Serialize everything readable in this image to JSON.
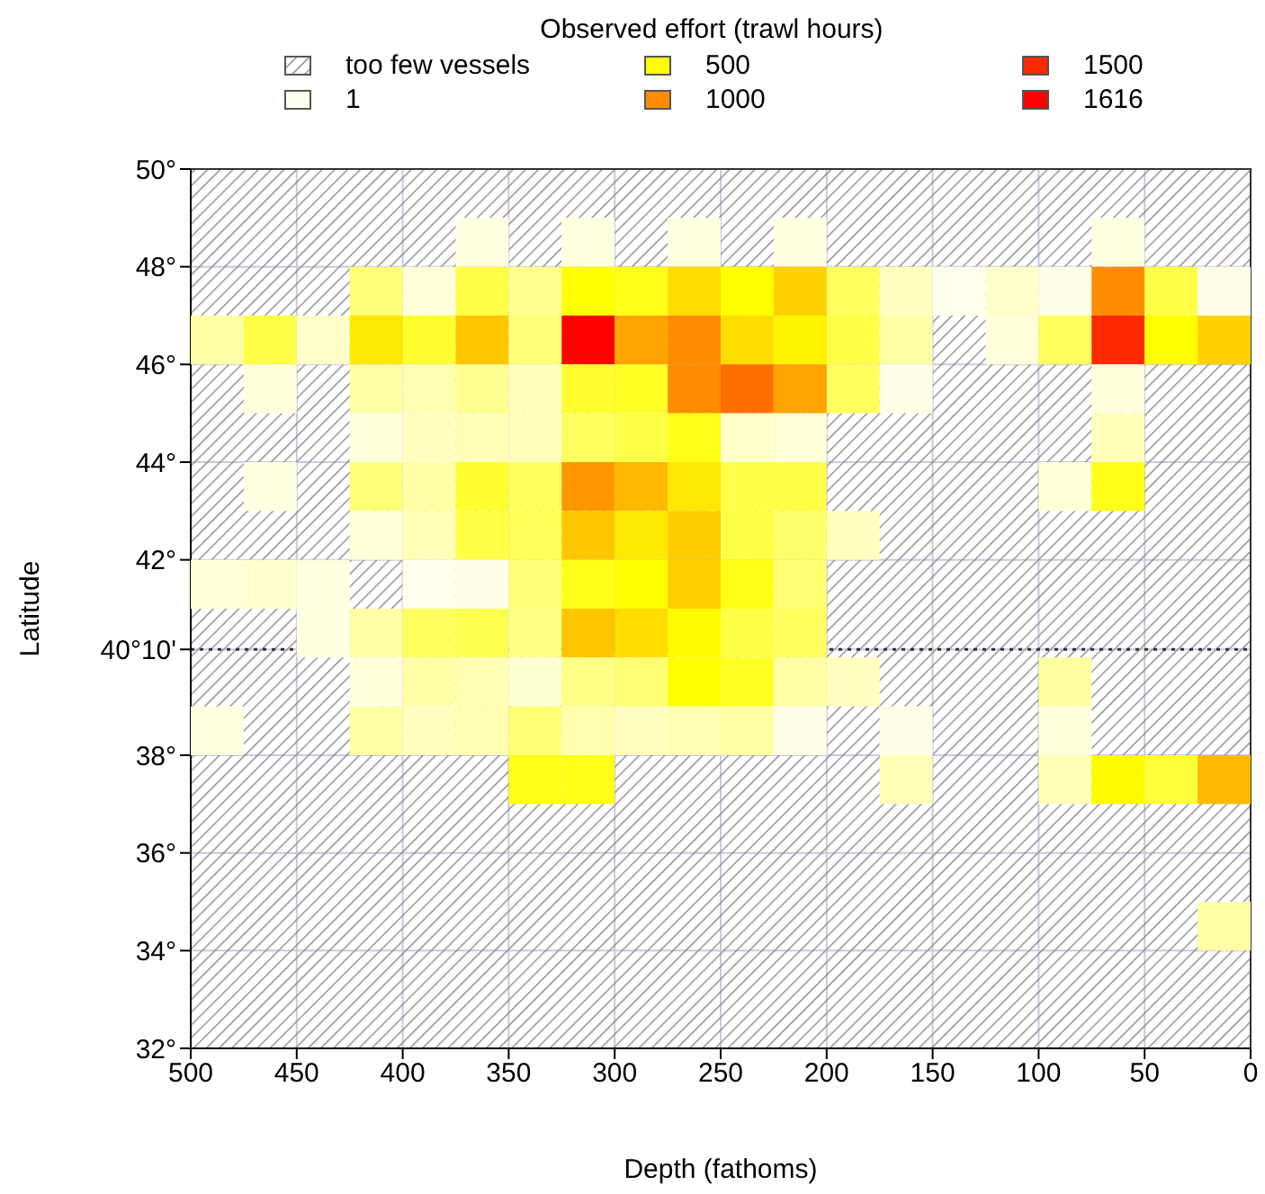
{
  "chart_data": {
    "type": "scatter",
    "marker": "square",
    "legend": "top",
    "legend_title": "Observed effort (trawl hours)",
    "xlabel": "Depth (fathoms)",
    "ylabel": "Latitude",
    "annotations": [
      "too few vessels"
    ],
    "xlim": [
      500,
      0
    ],
    "xticks": [
      500,
      450,
      400,
      350,
      300,
      250,
      200,
      150,
      100,
      50,
      0
    ],
    "ylim": [
      32,
      50
    ],
    "yticks": [
      {
        "value": 50,
        "label": "50°"
      },
      {
        "value": 48,
        "label": "48°"
      },
      {
        "value": 46,
        "label": "46°"
      },
      {
        "value": 44,
        "label": "44°"
      },
      {
        "value": 42,
        "label": "42°"
      },
      {
        "value": 40.1667,
        "label": "40°10'"
      },
      {
        "value": 38,
        "label": "38°"
      },
      {
        "value": 36,
        "label": "36°"
      },
      {
        "value": 34,
        "label": "34°"
      },
      {
        "value": 32,
        "label": "32°"
      }
    ],
    "ref_lines": [
      {
        "axis": "y",
        "value": 40.1667,
        "color": "#333333",
        "line_style": "dotted"
      }
    ],
    "grid": true,
    "series": [
      {
        "x": [
          362.5,
          312.5,
          262.5,
          212.5,
          62.5,
          412.5,
          387.5,
          362.5,
          337.5,
          312.5,
          287.5,
          262.5,
          237.5,
          212.5,
          187.5,
          162.5,
          137.5,
          112.5,
          87.5,
          62.5,
          37.5,
          12.5,
          487.5,
          462.5,
          437.5,
          412.5,
          387.5,
          362.5,
          337.5,
          312.5,
          287.5,
          262.5,
          237.5,
          212.5,
          187.5,
          162.5,
          112.5,
          87.5,
          62.5,
          37.5,
          12.5,
          462.5,
          412.5,
          387.5,
          362.5,
          337.5,
          312.5,
          287.5,
          262.5,
          237.5,
          212.5,
          187.5,
          162.5,
          62.5,
          412.5,
          387.5,
          362.5,
          337.5,
          312.5,
          287.5,
          262.5,
          237.5,
          212.5,
          62.5,
          462.5,
          412.5,
          387.5,
          362.5,
          337.5,
          312.5,
          287.5,
          262.5,
          237.5,
          212.5,
          87.5,
          62.5,
          412.5,
          387.5,
          362.5,
          337.5,
          312.5,
          287.5,
          262.5,
          237.5,
          212.5,
          187.5,
          487.5,
          462.5,
          437.5,
          387.5,
          362.5,
          337.5,
          312.5,
          287.5,
          262.5,
          237.5,
          212.5,
          437.5,
          412.5,
          387.5,
          362.5,
          337.5,
          312.5,
          287.5,
          262.5,
          237.5,
          212.5,
          412.5,
          387.5,
          362.5,
          337.5,
          312.5,
          287.5,
          262.5,
          237.5,
          212.5,
          187.5,
          87.5,
          487.5,
          412.5,
          387.5,
          362.5,
          337.5,
          312.5,
          287.5,
          262.5,
          237.5,
          212.5,
          162.5,
          87.5,
          337.5,
          312.5,
          162.5,
          87.5,
          62.5,
          37.5,
          12.5,
          12.5
        ],
        "values": [
          48.5,
          48.5,
          48.5,
          48.5,
          48.5,
          47.5,
          47.5,
          47.5,
          47.5,
          47.5,
          47.5,
          47.5,
          47.5,
          47.5,
          47.5,
          47.5,
          47.5,
          47.5,
          47.5,
          47.5,
          47.5,
          47.5,
          46.5,
          46.5,
          46.5,
          46.5,
          46.5,
          46.5,
          46.5,
          46.5,
          46.5,
          46.5,
          46.5,
          46.5,
          46.5,
          46.5,
          46.5,
          46.5,
          46.5,
          46.5,
          46.5,
          45.5,
          45.5,
          45.5,
          45.5,
          45.5,
          45.5,
          45.5,
          45.5,
          45.5,
          45.5,
          45.5,
          45.5,
          45.5,
          44.5,
          44.5,
          44.5,
          44.5,
          44.5,
          44.5,
          44.5,
          44.5,
          44.5,
          44.5,
          43.5,
          43.5,
          43.5,
          43.5,
          43.5,
          43.5,
          43.5,
          43.5,
          43.5,
          43.5,
          43.5,
          43.5,
          42.5,
          42.5,
          42.5,
          42.5,
          42.5,
          42.5,
          42.5,
          42.5,
          42.5,
          42.5,
          41.5,
          41.5,
          41.5,
          41.5,
          41.5,
          41.5,
          41.5,
          41.5,
          41.5,
          41.5,
          41.5,
          40.5,
          40.5,
          40.5,
          40.5,
          40.5,
          40.5,
          40.5,
          40.5,
          40.5,
          40.5,
          39.5,
          39.5,
          39.5,
          39.5,
          39.5,
          39.5,
          39.5,
          39.5,
          39.5,
          39.5,
          39.5,
          38.5,
          38.5,
          38.5,
          38.5,
          38.5,
          38.5,
          38.5,
          38.5,
          38.5,
          38.5,
          38.5,
          38.5,
          37.5,
          37.5,
          37.5,
          37.5,
          37.5,
          37.5,
          37.5,
          34.5
        ],
        "colors": [
          "#ffffe2",
          "#ffffe2",
          "#ffffe2",
          "#ffffe2",
          "#ffffe2",
          "#ffff78",
          "#ffffd8",
          "#ffff48",
          "#ffff90",
          "#ffff00",
          "#ffff18",
          "#ffdd00",
          "#ffff00",
          "#ffd100",
          "#ffff60",
          "#ffffc0",
          "#ffffec",
          "#ffffca",
          "#ffffe9",
          "#ff8c00",
          "#ffff48",
          "#ffffe9",
          "#ffffa8",
          "#ffff48",
          "#ffffca",
          "#ffe800",
          "#ffff30",
          "#ffc600",
          "#ffff78",
          "#ff0000",
          "#ffa300",
          "#ff8c00",
          "#ffdd00",
          "#fff400",
          "#ffff48",
          "#ffffa8",
          "#ffffdd",
          "#ffff60",
          "#ff2a00",
          "#ffff00",
          "#ffd100",
          "#ffffdd",
          "#ffffa8",
          "#ffffb2",
          "#ffff90",
          "#ffffbc",
          "#ffff30",
          "#ffff26",
          "#ff8c00",
          "#ff6f00",
          "#ffa300",
          "#ffff60",
          "#ffffe7",
          "#ffffdd",
          "#ffffdd",
          "#ffffc0",
          "#ffffb7",
          "#ffffbc",
          "#ffff60",
          "#ffff48",
          "#ffff18",
          "#ffffca",
          "#ffffd8",
          "#ffffb7",
          "#ffffe2",
          "#ffff78",
          "#ffffa8",
          "#ffff30",
          "#ffff60",
          "#ff9800",
          "#ffba00",
          "#ffe800",
          "#ffff48",
          "#ffff48",
          "#ffffd8",
          "#ffff18",
          "#ffffd8",
          "#ffffb7",
          "#ffff48",
          "#ffff57",
          "#ffc600",
          "#ffe800",
          "#ffcc00",
          "#ffff48",
          "#ffff6a",
          "#ffffc0",
          "#ffffd8",
          "#ffffcf",
          "#ffffe2",
          "#ffffec",
          "#ffffe7",
          "#ffff78",
          "#ffff18",
          "#ffff00",
          "#ffd100",
          "#ffff18",
          "#ffff73",
          "#ffffe2",
          "#ffffa8",
          "#ffff60",
          "#ffff52",
          "#ffff87",
          "#ffc600",
          "#ffdd00",
          "#fffa00",
          "#ffff48",
          "#ffff60",
          "#ffffdd",
          "#ffffa8",
          "#ffffb2",
          "#ffffd4",
          "#ffff87",
          "#ffff73",
          "#ffff00",
          "#ffff26",
          "#ffffa4",
          "#ffffc0",
          "#ffff9f",
          "#ffffe2",
          "#ffffa4",
          "#ffffc0",
          "#ffffb2",
          "#ffff73",
          "#ffffad",
          "#ffffc0",
          "#ffffb2",
          "#ffffa4",
          "#ffffe7",
          "#ffffe7",
          "#ffffdd",
          "#ffff18",
          "#ffff18",
          "#ffffb7",
          "#ffffb7",
          "#fffa00",
          "#ffff3a",
          "#ffba00",
          "#ffffa8"
        ]
      },
      {
        "name": "1",
        "color": "#fffff0"
      },
      {
        "name": "500",
        "color": "#ffff00"
      },
      {
        "name": "1000",
        "color": "#ff8c00"
      },
      {
        "name": "1500",
        "color": "#ff2a00"
      },
      {
        "name": "1616",
        "color": "#ff0000"
      }
    ]
  }
}
